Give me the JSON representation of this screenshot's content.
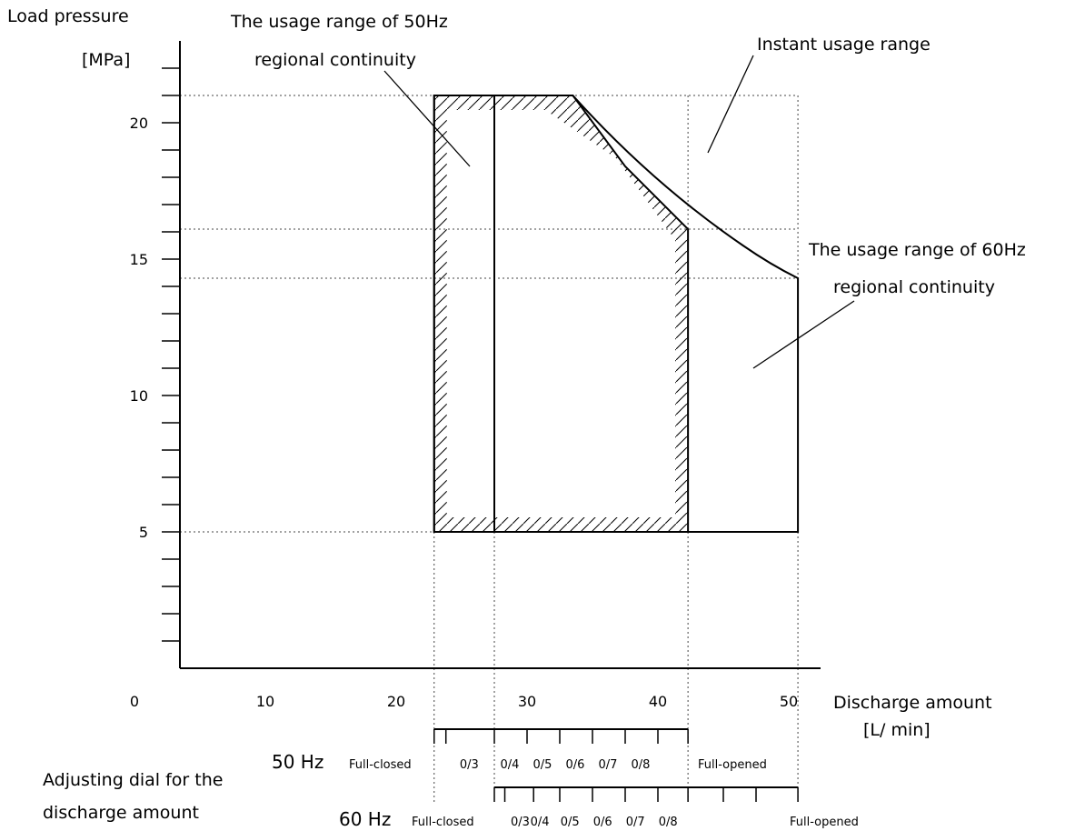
{
  "chart_data": {
    "type": "area",
    "ylabel": "Load pressure",
    "yunit": "[MPa]",
    "xlabel": "Discharge amount",
    "xunit": "[L/ min]",
    "x_ticks": [
      "0",
      "10",
      "20",
      "30",
      "40",
      "50"
    ],
    "y_ticks": [
      "5",
      "10",
      "15",
      "20"
    ],
    "xlim": [
      0,
      55
    ],
    "ylim": [
      0,
      23
    ],
    "regions": [
      {
        "name": "The usage range of 50Hz regional continuity",
        "hatched": true,
        "x": [
          22.9,
          33.5,
          37.5,
          42.3,
          42.3,
          22.9
        ],
        "y": [
          21,
          21,
          18.4,
          16.1,
          5,
          5
        ]
      },
      {
        "name": "Instant usage range",
        "hatched": false,
        "x": [
          22.9,
          33.5,
          37.5,
          42.3,
          46.5,
          50.7,
          50.7,
          22.9
        ],
        "y": [
          21,
          21,
          18.4,
          16.9,
          15.5,
          14.3,
          5,
          5
        ]
      },
      {
        "name": "The usage range of 60Hz regional continuity",
        "hatched": false,
        "x": [
          22.9,
          50.7
        ],
        "y": [
          5,
          14.3
        ]
      }
    ],
    "reference_lines": {
      "x": [
        22.9,
        27.5,
        42.3,
        50.7
      ],
      "y": [
        5,
        14.3,
        16.1,
        21
      ]
    },
    "inner_divider_x": 27.5
  },
  "annotations": {
    "range_50hz_line1": "The usage range of 50Hz",
    "range_50hz_line2": "regional continuity",
    "instant_range": "Instant usage range",
    "range_60hz_line1": "The usage range of 60Hz",
    "range_60hz_line2": "regional continuity"
  },
  "dial": {
    "title_line1": "Adjusting dial for the",
    "title_line2": "discharge amount",
    "hz50": {
      "label": "50 Hz",
      "closed_label": "Full-closed",
      "opened_label": "Full-opened",
      "marks": [
        "0/3",
        "0/4",
        "0/5",
        "0/6",
        "0/7",
        "0/8"
      ],
      "tick_x": [
        22.9,
        23.8,
        27.5,
        30,
        32.5,
        35,
        37.5,
        40,
        42.3
      ]
    },
    "hz60": {
      "label": "60 Hz",
      "closed_label": "Full-closed",
      "opened_label": "Full-opened",
      "marks": [
        "0/3",
        "0/4",
        "0/5",
        "0/6",
        "0/7",
        "0/8"
      ],
      "tick_x": [
        27.5,
        28.3,
        30.5,
        32.5,
        35,
        37.5,
        40,
        42.3,
        45,
        47.5,
        50.7
      ]
    }
  }
}
